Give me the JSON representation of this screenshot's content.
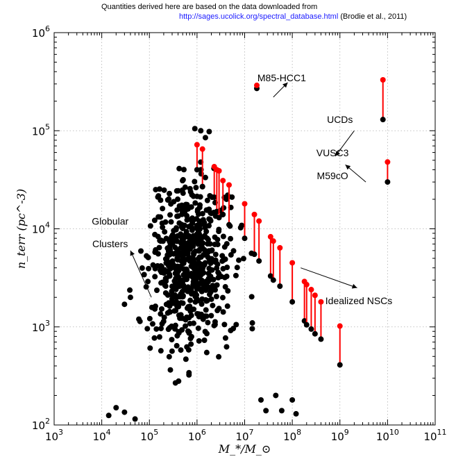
{
  "source_note": {
    "line1": "Quantities derived here are based on the data downloaded from",
    "link": "http://sages.ucolick.org/spectral_database.html",
    "citation": "(Brodie et al., 2011)"
  },
  "chart_data": {
    "type": "scatter",
    "title": "",
    "xlabel": "M_*/M_⊙",
    "ylabel": "n_terr (pc^-3)",
    "x_scale": "log",
    "y_scale": "log",
    "xlim": [
      1000,
      100000000000
    ],
    "ylim": [
      100,
      1000000
    ],
    "grid": true,
    "x_ticks": [
      {
        "base": "10",
        "exp": "3",
        "value": 1000
      },
      {
        "base": "10",
        "exp": "4",
        "value": 10000
      },
      {
        "base": "10",
        "exp": "5",
        "value": 100000
      },
      {
        "base": "10",
        "exp": "6",
        "value": 1000000
      },
      {
        "base": "10",
        "exp": "7",
        "value": 10000000
      },
      {
        "base": "10",
        "exp": "8",
        "value": 100000000
      },
      {
        "base": "10",
        "exp": "9",
        "value": 1000000000
      },
      {
        "base": "10",
        "exp": "10",
        "value": 10000000000
      },
      {
        "base": "10",
        "exp": "11",
        "value": 100000000000
      }
    ],
    "y_ticks": [
      {
        "base": "10",
        "exp": "2",
        "value": 100
      },
      {
        "base": "10",
        "exp": "3",
        "value": 1000
      },
      {
        "base": "10",
        "exp": "4",
        "value": 10000
      },
      {
        "base": "10",
        "exp": "5",
        "value": 100000
      },
      {
        "base": "10",
        "exp": "6",
        "value": 1000000
      }
    ],
    "colors": {
      "observed": "#000000",
      "upper": "#ff0000",
      "connector": "#ff0000"
    },
    "annotations": [
      {
        "text": "M85-HCC1",
        "x": 60000000,
        "y": 320000
      },
      {
        "text": "UCDs",
        "x": 1000000000,
        "y": 120000
      },
      {
        "text": "VUSC3",
        "x": 700000000,
        "y": 55000
      },
      {
        "text": "M59cO",
        "x": 700000000,
        "y": 32000
      },
      {
        "text": "Globular",
        "x": 15000,
        "y": 11000
      },
      {
        "text": "Clusters",
        "x": 15000,
        "y": 6500
      },
      {
        "text": "Idealized NSCs",
        "x": 2500000000,
        "y": 1700
      }
    ],
    "arrows": [
      {
        "from": [
          40000000,
          220000
        ],
        "to": [
          80000000,
          310000
        ]
      },
      {
        "from": [
          2000000000,
          100000
        ],
        "to": [
          800000000,
          55000
        ]
      },
      {
        "from": [
          3500000000,
          30000
        ],
        "to": [
          1300000000,
          45000
        ]
      },
      {
        "from": [
          110000,
          2000
        ],
        "to": [
          40000,
          6000
        ]
      },
      {
        "from": [
          150000000,
          4000
        ],
        "to": [
          2300000000,
          2500
        ]
      }
    ],
    "pairs": [
      {
        "x": 18000000,
        "lower": 270000,
        "upper": 290000
      },
      {
        "x": 8000000000,
        "lower": 130000,
        "upper": 330000
      },
      {
        "x": 10000000000,
        "lower": 30000,
        "upper": 48000
      },
      {
        "x": 1000000,
        "lower": 40000,
        "upper": 72000
      },
      {
        "x": 1300000,
        "lower": 27000,
        "upper": 65000
      },
      {
        "x": 2300000,
        "lower": 21000,
        "upper": 43000
      },
      {
        "x": 2600000,
        "lower": 15000,
        "upper": 40000
      },
      {
        "x": 2900000,
        "lower": 13000,
        "upper": 39000
      },
      {
        "x": 3500000,
        "lower": 14000,
        "upper": 31000
      },
      {
        "x": 4700000,
        "lower": 11000,
        "upper": 28000
      },
      {
        "x": 10000000,
        "lower": 8000,
        "upper": 18000
      },
      {
        "x": 16000000,
        "lower": 5500,
        "upper": 14000
      },
      {
        "x": 20000000,
        "lower": 4700,
        "upper": 12000
      },
      {
        "x": 35000000,
        "lower": 3300,
        "upper": 8300
      },
      {
        "x": 40000000,
        "lower": 3000,
        "upper": 7500
      },
      {
        "x": 55000000,
        "lower": 2600,
        "upper": 6400
      },
      {
        "x": 100000000,
        "lower": 1800,
        "upper": 4500
      },
      {
        "x": 180000000,
        "lower": 1150,
        "upper": 2900
      },
      {
        "x": 200000000,
        "lower": 1050,
        "upper": 2700
      },
      {
        "x": 250000000,
        "lower": 950,
        "upper": 2400
      },
      {
        "x": 300000000,
        "lower": 850,
        "upper": 2100
      },
      {
        "x": 400000000,
        "lower": 750,
        "upper": 1800
      },
      {
        "x": 1000000000,
        "lower": 410,
        "upper": 1020
      }
    ],
    "cluster_generator": {
      "count": 620,
      "log_mass_center": 5.85,
      "log_mass_spread": 0.42,
      "log_density_center": 3.62,
      "log_density_spread": 0.42,
      "log_mass_range": [
        4.1,
        7.35
      ],
      "log_density_range": [
        2.05,
        5.0
      ],
      "seed": 7
    },
    "outlier_points": [
      {
        "x": 14000,
        "y": 125
      },
      {
        "x": 20000,
        "y": 150
      },
      {
        "x": 30000,
        "y": 135
      },
      {
        "x": 50000,
        "y": 115
      },
      {
        "x": 30000,
        "y": 1700
      },
      {
        "x": 40000,
        "y": 2000
      },
      {
        "x": 60000,
        "y": 1200
      },
      {
        "x": 22000000,
        "y": 180
      },
      {
        "x": 28000000,
        "y": 140
      },
      {
        "x": 45000000,
        "y": 200
      },
      {
        "x": 60000000,
        "y": 140
      },
      {
        "x": 120000000,
        "y": 130
      },
      {
        "x": 100000000,
        "y": 180
      },
      {
        "x": 900000,
        "y": 105000
      },
      {
        "x": 1200000,
        "y": 100000
      },
      {
        "x": 1800000,
        "y": 98000
      },
      {
        "x": 1500000,
        "y": 85000
      }
    ]
  }
}
